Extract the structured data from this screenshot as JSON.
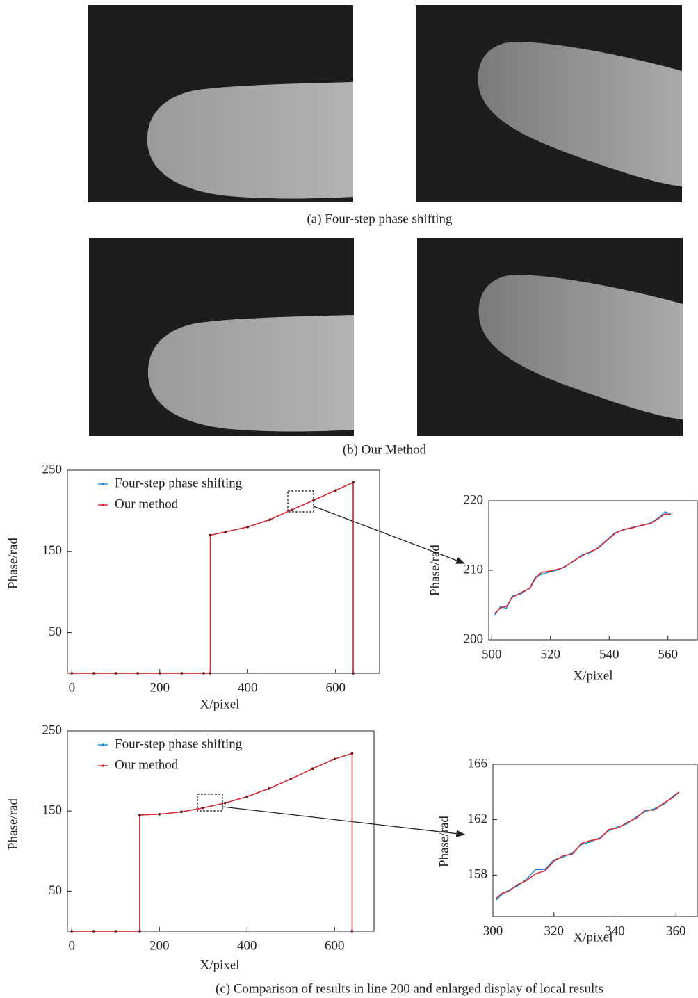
{
  "captions": [
    "(a) Four-step phase shifting",
    "(b) Our Method",
    "(c) Comparison of results in line 200 and enlarged display of local results"
  ],
  "chart_data": [
    {
      "type": "line",
      "xlabel": "X/pixel",
      "ylabel": "Phase/rad",
      "xlim": [
        -10,
        700
      ],
      "ylim": [
        0,
        250
      ],
      "xticks": [
        0,
        200,
        400,
        600
      ],
      "yticks": [
        50,
        150,
        250
      ],
      "legend": "upper left",
      "markers": true,
      "x": [
        0,
        50,
        100,
        150,
        200,
        250,
        300,
        315,
        315,
        350,
        400,
        450,
        500,
        550,
        600,
        640,
        640
      ],
      "series": [
        {
          "name": "Four-step phase shifting",
          "color": "#1a8fd6",
          "values": [
            0,
            0,
            0,
            0,
            0,
            0,
            0,
            0,
            170,
            174,
            180,
            189,
            201,
            213,
            225,
            235,
            0
          ]
        },
        {
          "name": "Our method",
          "color": "#e3262a",
          "values": [
            0,
            0,
            0,
            0,
            0,
            0,
            0,
            0,
            170,
            174,
            180,
            189,
            201,
            213,
            225,
            235,
            0
          ]
        }
      ]
    },
    {
      "type": "line",
      "xlabel": "X/pixel",
      "ylabel": "Phase/rad",
      "xlim": [
        499,
        570
      ],
      "ylim": [
        200,
        220
      ],
      "xticks": [
        500,
        520,
        540,
        560
      ],
      "yticks": [
        200,
        210,
        220
      ],
      "x": [
        501,
        503,
        505,
        507,
        510,
        513,
        515,
        517,
        520,
        523,
        525,
        528,
        531,
        533,
        536,
        539,
        542,
        545,
        548,
        551,
        554,
        557,
        559,
        561
      ],
      "series": [
        {
          "name": "Four-step phase shifting",
          "color": "#1a8fd6",
          "values": [
            203.5,
            204.8,
            204.5,
            206.3,
            206.6,
            207.5,
            209.1,
            209.4,
            209.8,
            210.1,
            210.6,
            211.3,
            212.3,
            212.4,
            213.2,
            214.3,
            215.4,
            215.8,
            216.2,
            216.4,
            216.8,
            217.6,
            218.4,
            218.1
          ]
        },
        {
          "name": "Our method",
          "color": "#e3262a",
          "values": [
            203.8,
            204.6,
            204.8,
            206.1,
            206.8,
            207.4,
            208.9,
            209.7,
            209.9,
            210.2,
            210.5,
            211.4,
            212.1,
            212.6,
            213.1,
            214.2,
            215.3,
            215.9,
            216.1,
            216.5,
            216.7,
            217.5,
            218.1,
            218.0
          ]
        }
      ]
    },
    {
      "type": "line",
      "xlabel": "X/pixel",
      "ylabel": "Phase/rad",
      "xlim": [
        -10,
        690
      ],
      "ylim": [
        0,
        250
      ],
      "xticks": [
        0,
        200,
        400,
        600
      ],
      "yticks": [
        50,
        150,
        250
      ],
      "legend": "upper left",
      "markers": true,
      "x": [
        0,
        50,
        100,
        155,
        155,
        200,
        250,
        300,
        350,
        400,
        450,
        500,
        550,
        600,
        640,
        640
      ],
      "series": [
        {
          "name": "Four-step phase shifting",
          "color": "#1a8fd6",
          "values": [
            0,
            0,
            0,
            0,
            145,
            146,
            149,
            154,
            160,
            168,
            178,
            190,
            203,
            215,
            222,
            0
          ]
        },
        {
          "name": "Our method",
          "color": "#e3262a",
          "values": [
            0,
            0,
            0,
            0,
            145,
            146,
            149,
            154,
            160,
            168,
            178,
            190,
            203,
            215,
            222,
            0
          ]
        }
      ]
    },
    {
      "type": "line",
      "xlabel": "X/pixel",
      "ylabel": "Phase/rad",
      "xlim": [
        300,
        367
      ],
      "ylim": [
        155,
        166
      ],
      "xticks": [
        300,
        320,
        340,
        360
      ],
      "yticks": [
        158,
        162,
        166
      ],
      "x": [
        301,
        303,
        305,
        308,
        311,
        314,
        317,
        320,
        323,
        326,
        329,
        332,
        335,
        338,
        341,
        344,
        347,
        350,
        353,
        356,
        359,
        361
      ],
      "series": [
        {
          "name": "Four-step phase shifting",
          "color": "#1a8fd6",
          "values": [
            156.2,
            156.6,
            156.9,
            157.2,
            157.7,
            158.4,
            158.4,
            159.1,
            159.3,
            159.6,
            160.2,
            160.4,
            160.7,
            161.2,
            161.5,
            161.7,
            162.2,
            162.6,
            162.8,
            163.1,
            163.7,
            164.0
          ]
        },
        {
          "name": "Our method",
          "color": "#e3262a",
          "values": [
            156.3,
            156.7,
            156.8,
            157.3,
            157.6,
            158.1,
            158.3,
            159.0,
            159.4,
            159.5,
            160.3,
            160.5,
            160.6,
            161.3,
            161.4,
            161.8,
            162.1,
            162.7,
            162.7,
            163.2,
            163.6,
            164.0
          ]
        }
      ]
    }
  ]
}
